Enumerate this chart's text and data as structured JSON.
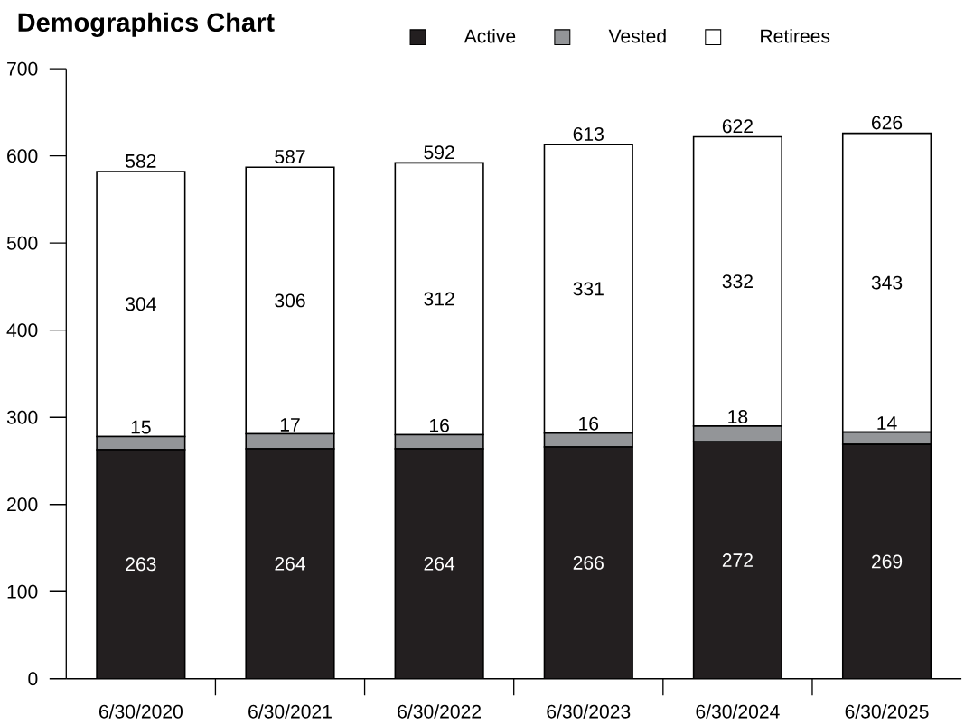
{
  "chart_data": {
    "type": "bar",
    "stacked": true,
    "title": "Demographics Chart",
    "categories": [
      "6/30/2020",
      "6/30/2021",
      "6/30/2022",
      "6/30/2023",
      "6/30/2024",
      "6/30/2025"
    ],
    "series": [
      {
        "name": "Active",
        "color": "#231f20",
        "values": [
          263,
          264,
          264,
          266,
          272,
          269
        ]
      },
      {
        "name": "Vested",
        "color": "#939598",
        "values": [
          15,
          17,
          16,
          16,
          18,
          14
        ]
      },
      {
        "name": "Retirees",
        "color": "#ffffff",
        "values": [
          304,
          306,
          312,
          331,
          332,
          343
        ]
      }
    ],
    "totals": [
      "582",
      "587",
      "592",
      "613",
      "622",
      "626"
    ],
    "ylim": [
      0,
      700
    ],
    "yticks": [
      0,
      100,
      200,
      300,
      400,
      500,
      600,
      700
    ],
    "data_labels": true,
    "legend": "top",
    "grid": false
  }
}
